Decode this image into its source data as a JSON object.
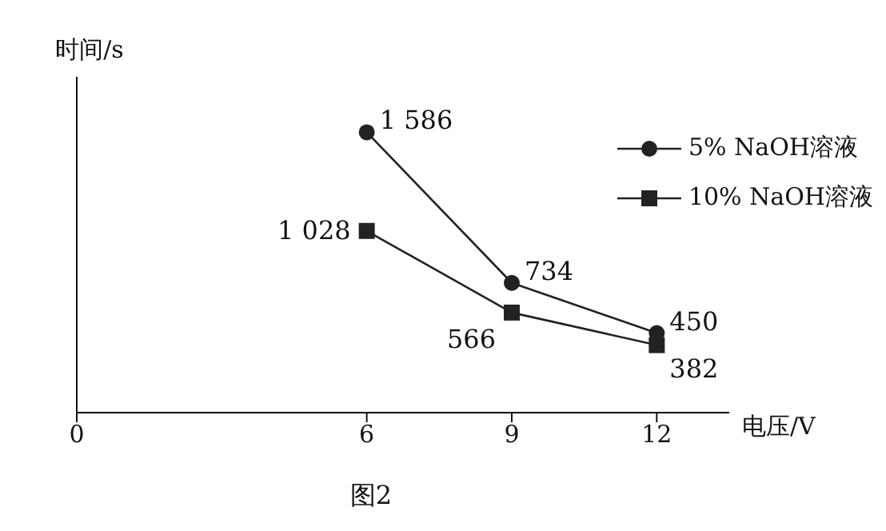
{
  "chart_data": {
    "type": "line",
    "title": "图2",
    "xlabel": "电压/V",
    "ylabel": "时间/s",
    "x": [
      6,
      9,
      12
    ],
    "xlim": [
      0,
      13.5
    ],
    "xticks": [
      0,
      6,
      9,
      12
    ],
    "ylim": [
      0,
      1900
    ],
    "tick_labels": "x",
    "series": [
      {
        "name": "5% NaOH溶液",
        "color": "#222222",
        "marker": "circle",
        "values": [
          1586,
          734,
          450
        ],
        "value_labels": [
          "1 586",
          "734",
          "450"
        ]
      },
      {
        "name": "10% NaOH溶液",
        "color": "#222222",
        "marker": "square",
        "values": [
          1028,
          566,
          382
        ],
        "value_labels": [
          "1 028",
          "566",
          "382"
        ]
      }
    ],
    "legend": "top right",
    "grid": false,
    "line_style": "solid"
  }
}
